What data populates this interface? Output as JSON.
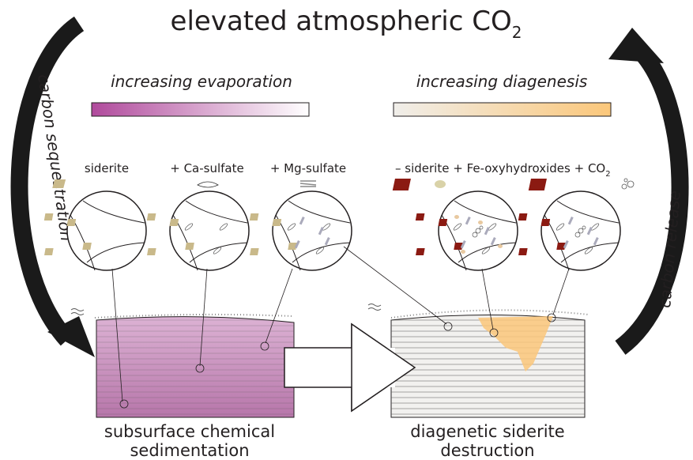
{
  "title": {
    "main": "elevated atmospheric CO",
    "sub": "2"
  },
  "left_cycle_label": "carbon sequestration",
  "right_cycle_label": "carbon release",
  "evaporation": {
    "label": "increasing evaporation",
    "gradient": [
      "#b04a9c",
      "#ffffff"
    ]
  },
  "diagenesis": {
    "label": "increasing diagenesis",
    "gradient": [
      "#f0eeea",
      "#fbc77a"
    ]
  },
  "minerals_left": [
    "siderite",
    "+ Ca-sulfate",
    "+ Mg-sulfate"
  ],
  "minerals_right": {
    "siderite": "– siderite",
    "fe": "+ Fe-oxyhydroxides",
    "co2": "+ CO",
    "co2_sub": "2"
  },
  "left_block": {
    "label_line1": "subsurface chemical",
    "label_line2": "sedimentation"
  },
  "right_block": {
    "label_line1": "diagenetic siderite",
    "label_line2": "destruction"
  },
  "colors": {
    "siderite": "#c9b98a",
    "fe_oxide": "#8b1a12",
    "orange": "#fbc77a",
    "purple": "#a8579a"
  }
}
